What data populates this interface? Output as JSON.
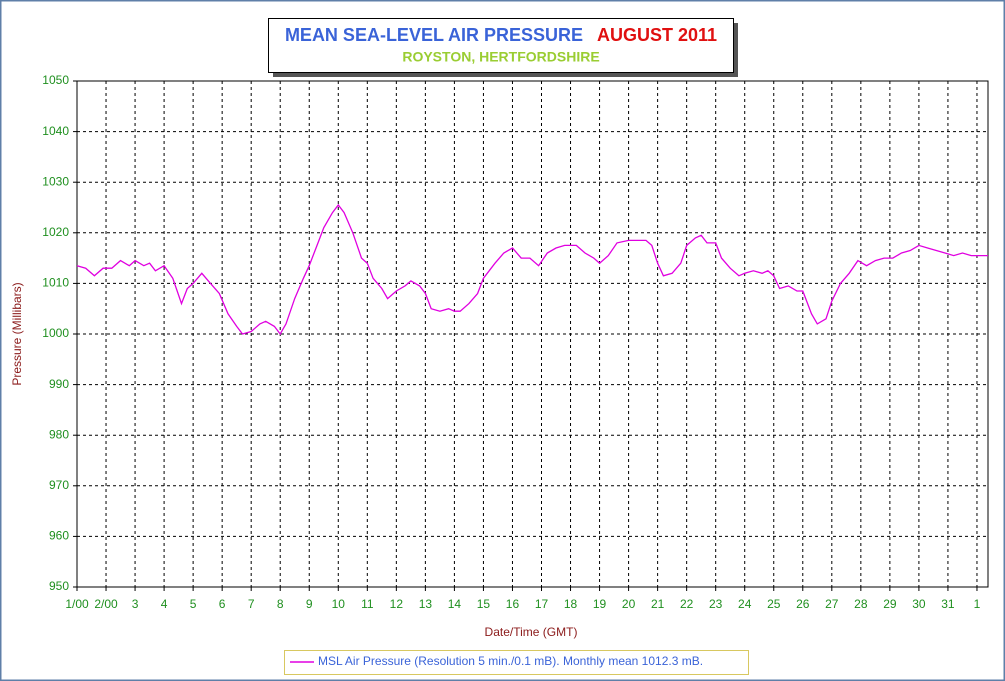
{
  "chart_data": {
    "type": "line",
    "title": "MEAN SEA-LEVEL AIR PRESSURE",
    "title_period": "AUGUST 2011",
    "subtitle": "ROYSTON, HERTFORDSHIRE",
    "x_label": "Date/Time (GMT)",
    "y_label": "Pressure (Millibars)",
    "xlim": [
      1,
      32.38
    ],
    "ylim": [
      950,
      1050
    ],
    "xticks": [
      {
        "value": 1,
        "label": "1/00"
      },
      {
        "value": 2,
        "label": "2/00"
      },
      3,
      4,
      5,
      6,
      7,
      8,
      9,
      10,
      11,
      12,
      13,
      14,
      15,
      16,
      17,
      18,
      19,
      20,
      21,
      22,
      23,
      24,
      25,
      26,
      27,
      28,
      29,
      30,
      31,
      {
        "value": 32,
        "label": "1"
      }
    ],
    "yticks": [
      950,
      960,
      970,
      980,
      990,
      1000,
      1010,
      1020,
      1030,
      1040,
      1050
    ],
    "grid": true,
    "legend": "bottom",
    "x": [
      1.0,
      1.3,
      1.6,
      1.9,
      2.2,
      2.5,
      2.8,
      3.0,
      3.3,
      3.5,
      3.7,
      4.0,
      4.3,
      4.6,
      4.8,
      5.0,
      5.3,
      5.6,
      5.9,
      6.2,
      6.5,
      6.7,
      7.0,
      7.3,
      7.5,
      7.8,
      8.0,
      8.2,
      8.5,
      8.8,
      9.0,
      9.3,
      9.5,
      9.8,
      10.0,
      10.2,
      10.5,
      10.8,
      11.0,
      11.2,
      11.5,
      11.7,
      12.0,
      12.3,
      12.5,
      12.8,
      13.0,
      13.2,
      13.5,
      13.8,
      14.0,
      14.2,
      14.5,
      14.8,
      15.0,
      15.4,
      15.7,
      16.0,
      16.3,
      16.6,
      16.9,
      17.2,
      17.5,
      17.8,
      18.2,
      18.5,
      18.8,
      19.0,
      19.3,
      19.6,
      20.0,
      20.3,
      20.6,
      20.8,
      21.0,
      21.2,
      21.5,
      21.8,
      22.0,
      22.3,
      22.5,
      22.7,
      23.0,
      23.2,
      23.5,
      23.8,
      24.0,
      24.3,
      24.6,
      24.8,
      25.0,
      25.2,
      25.5,
      25.8,
      26.0,
      26.3,
      26.5,
      26.8,
      27.0,
      27.3,
      27.6,
      27.9,
      28.2,
      28.5,
      28.8,
      29.1,
      29.4,
      29.7,
      30.0,
      30.3,
      30.6,
      30.9,
      31.2,
      31.5,
      31.8,
      32.0,
      32.38
    ],
    "series": [
      {
        "name": "MSL Air Pressure (Resolution 5 min./0.1 mB). Monthly mean 1012.3 mB.",
        "color": "#e000e0",
        "values": [
          1013.5,
          1013,
          1011.5,
          1013,
          1013,
          1014.5,
          1013.5,
          1014.5,
          1013.5,
          1014,
          1012.5,
          1013.5,
          1011,
          1006,
          1009,
          1010,
          1012,
          1010,
          1008,
          1004,
          1001.5,
          1000,
          1000.5,
          1002,
          1002.5,
          1001.5,
          1000,
          1002,
          1007,
          1011,
          1013.5,
          1018,
          1021,
          1024,
          1025.5,
          1024,
          1020,
          1015,
          1014,
          1011,
          1009,
          1007,
          1008.5,
          1009.5,
          1010.5,
          1009.5,
          1008,
          1005,
          1004.5,
          1005,
          1004.5,
          1004.5,
          1006,
          1008,
          1011,
          1014,
          1016,
          1017,
          1015,
          1015,
          1013.5,
          1016,
          1017,
          1017.5,
          1017.5,
          1016,
          1015,
          1014,
          1015.5,
          1018,
          1018.5,
          1018.5,
          1018.5,
          1017.5,
          1014,
          1011.5,
          1012,
          1014,
          1017.5,
          1019,
          1019.5,
          1018,
          1018,
          1015,
          1013,
          1011.5,
          1012,
          1012.5,
          1012,
          1012.5,
          1011.5,
          1009,
          1009.5,
          1008.5,
          1008.5,
          1004,
          1002,
          1003,
          1006.5,
          1010,
          1012,
          1014.5,
          1013.5,
          1014.5,
          1015,
          1015,
          1016,
          1016.5,
          1017.5,
          1017,
          1016.5,
          1016,
          1015.5,
          1016,
          1015.5,
          1015.5,
          1015.5
        ]
      }
    ]
  }
}
